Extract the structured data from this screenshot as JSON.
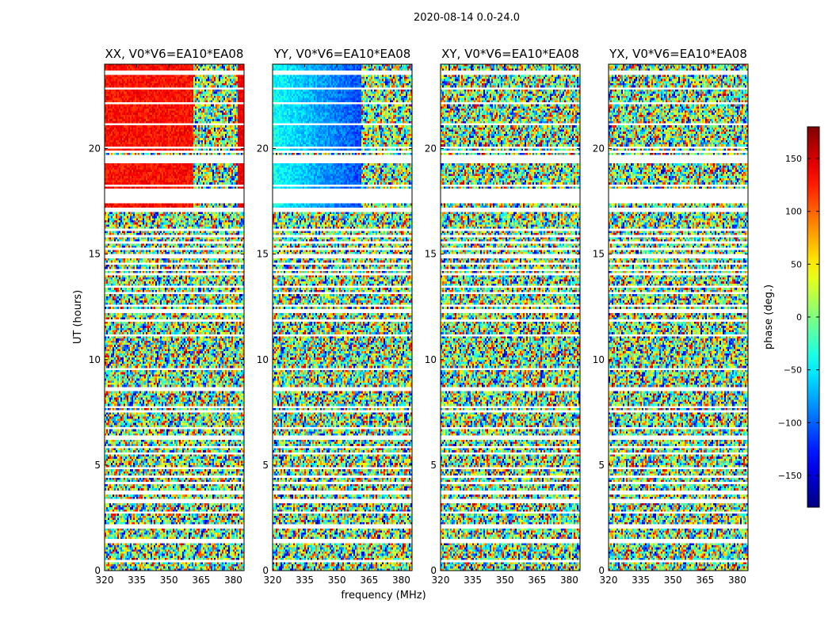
{
  "chart_data": {
    "type": "heatmap",
    "suptitle": "2020-08-14 0.0-24.0",
    "xlabel": "frequency (MHz)",
    "ylabel": "UT (hours)",
    "xlim": [
      320,
      385
    ],
    "ylim": [
      0,
      24
    ],
    "xticks": [
      320,
      335,
      350,
      365,
      380
    ],
    "yticks": [
      0,
      5,
      10,
      15,
      20
    ],
    "panels": [
      {
        "title": "XX, V0*V6=EA10*EA08",
        "pol": "XX",
        "base_phase": 130,
        "trend": 0
      },
      {
        "title": "YY, V0*V6=EA10*EA08",
        "pol": "YY",
        "base_phase": -40,
        "trend": -110
      },
      {
        "title": "XY, V0*V6=EA10*EA08",
        "pol": "XY",
        "base_phase": null,
        "trend": 0
      },
      {
        "title": "YX, V0*V6=EA10*EA08",
        "pol": "YX",
        "base_phase": null,
        "trend": 0
      }
    ],
    "coherent_ranges_hours": [
      [
        17.2,
        17.5
      ],
      [
        17.6,
        18.0
      ],
      [
        18.05,
        19.5
      ],
      [
        19.8,
        24
      ]
    ],
    "coherent_freq_edge_mhz": 361,
    "blank_rows_hours": [
      0.5,
      1.4,
      2.1,
      2.8,
      3.3,
      3.65,
      3.75,
      4.15,
      4.45,
      4.85,
      5.55,
      5.85,
      6.3,
      6.8,
      7.1,
      7.55,
      7.75,
      7.9,
      8.55,
      8.7,
      9.55,
      10.5,
      11.2,
      11.85,
      12.3,
      12.5,
      13.2,
      13.45,
      14.0,
      14.25,
      14.6,
      14.9,
      15.25,
      15.5,
      15.85,
      16.15,
      17.15,
      17.5,
      17.55,
      18.05,
      18.25,
      19.55,
      19.9,
      20.05,
      21.15,
      22.1,
      22.5,
      22.85,
      23.3,
      23.55,
      23.65
    ],
    "blank_bands_hours": [
      [
        17.55,
        18.0
      ],
      [
        19.3,
        19.75
      ],
      [
        12.15,
        12.4
      ],
      [
        17.0,
        17.15
      ]
    ],
    "colorbar": {
      "label": "phase (deg.)",
      "range": [
        -180,
        180
      ],
      "ticks": [
        -150,
        -100,
        -50,
        0,
        50,
        100,
        150
      ],
      "tick_labels": [
        "−150",
        "−100",
        "−50",
        "0",
        "50",
        "100",
        "150"
      ],
      "colormap": "jet"
    }
  }
}
